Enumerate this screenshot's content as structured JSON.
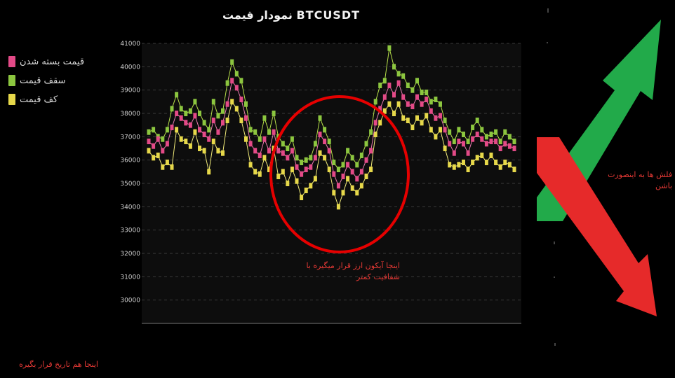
{
  "title": "نمودار قیمت BTCUSDT",
  "legend": [
    {
      "label": "قیمت بسته شدن",
      "color": "#e34a87"
    },
    {
      "label": "سقف قیمت",
      "color": "#8cc63f"
    },
    {
      "label": "کف قیمت",
      "color": "#e6d84a"
    }
  ],
  "annotations": {
    "icon_note": "اینجا آیکون ارز قرار میگیره با شفافیت کمتر",
    "date_note": "اینجا هم تاریخ قرار بگیره",
    "arrows_note": "فلش ها به اینصورت باشن"
  },
  "colors": {
    "plot_bg": "#0d0d0d",
    "grid": "#3a3a3a",
    "highlight_circle": "#e60000",
    "arrow_up": "#22aa4a",
    "arrow_down": "#e62a2a",
    "high_line": "#b7e04a",
    "low_line": "#f2ec7a",
    "close_line": "#e97bb0"
  },
  "chart_data": {
    "type": "line",
    "title": "نمودار قیمت BTCUSDT",
    "ylim": [
      29000,
      41000
    ],
    "y_ticks": [
      "30000",
      "31000",
      "32000",
      "33000",
      "34000",
      "35000",
      "36000",
      "37000",
      "38000",
      "39000",
      "40000",
      "41000"
    ],
    "x": [
      1,
      2,
      3,
      4,
      5,
      6,
      7,
      8,
      9,
      10,
      11,
      12,
      13,
      14,
      15,
      16,
      17,
      18,
      19,
      20,
      21,
      22,
      23,
      24,
      25,
      26,
      27,
      28,
      29,
      30,
      31,
      32,
      33,
      34,
      35,
      36,
      37,
      38,
      39,
      40,
      41,
      42,
      43,
      44,
      45,
      46,
      47,
      48,
      49,
      50,
      51,
      52,
      53,
      54,
      55,
      56,
      57,
      58,
      59,
      60,
      61,
      62,
      63,
      64,
      65,
      66,
      67,
      68,
      69,
      70,
      71,
      72,
      73,
      74,
      75,
      76,
      77,
      78,
      79,
      80
    ],
    "series": [
      {
        "name": "قیمت بسته شدن",
        "values": [
          36800,
          36600,
          36900,
          36400,
          36700,
          37400,
          38000,
          37800,
          37600,
          37500,
          37900,
          37300,
          37100,
          36900,
          37700,
          37200,
          37600,
          38400,
          39400,
          39100,
          38600,
          37800,
          36700,
          36400,
          36200,
          36900,
          36400,
          37200,
          36400,
          36300,
          36100,
          36400,
          35700,
          35400,
          35600,
          35700,
          36100,
          37100,
          36800,
          36400,
          35400,
          34900,
          35300,
          35800,
          35500,
          35200,
          35500,
          36000,
          36400,
          37600,
          38200,
          38700,
          39200,
          38800,
          39300,
          38700,
          38400,
          38300,
          38700,
          38400,
          38600,
          38100,
          37800,
          37900,
          37300,
          36700,
          36300,
          36800,
          36700,
          36300,
          36900,
          37100,
          36900,
          36700,
          36800,
          36800,
          36500,
          36700,
          36600,
          36500
        ]
      },
      {
        "name": "سقف قیمت",
        "values": [
          37200,
          37300,
          37000,
          36900,
          37300,
          38200,
          38800,
          38200,
          38000,
          38100,
          38500,
          38000,
          37600,
          37300,
          38500,
          37900,
          38100,
          39300,
          40200,
          39700,
          39400,
          38400,
          37300,
          37200,
          36900,
          37800,
          37200,
          38000,
          37000,
          36700,
          36500,
          36900,
          36100,
          35900,
          36000,
          36100,
          36700,
          37800,
          37300,
          36800,
          35900,
          35600,
          35800,
          36400,
          36100,
          35800,
          36200,
          36700,
          37200,
          38500,
          39200,
          39400,
          40800,
          40000,
          39700,
          39600,
          39200,
          39000,
          39400,
          38900,
          38900,
          38500,
          38600,
          38400,
          37700,
          37200,
          36800,
          37300,
          37100,
          36800,
          37400,
          37700,
          37300,
          37000,
          37100,
          37200,
          36800,
          37200,
          37000,
          36800
        ]
      },
      {
        "name": "کف قیمت",
        "values": [
          36400,
          36100,
          36200,
          35700,
          35900,
          35700,
          37300,
          36900,
          36800,
          36600,
          37200,
          36500,
          36400,
          35500,
          36800,
          36400,
          36300,
          37700,
          38500,
          38200,
          37700,
          36900,
          35800,
          35500,
          35400,
          36100,
          35600,
          36500,
          35300,
          35500,
          35000,
          35600,
          35100,
          34400,
          34700,
          34900,
          35200,
          36300,
          36100,
          35600,
          34600,
          34000,
          34600,
          35200,
          34800,
          34600,
          34900,
          35300,
          35600,
          37100,
          37600,
          38100,
          38400,
          38000,
          38400,
          37800,
          37700,
          37400,
          37800,
          37600,
          37900,
          37300,
          37000,
          37300,
          36500,
          35800,
          35700,
          35800,
          35900,
          35600,
          35900,
          36100,
          36200,
          35900,
          36200,
          35900,
          35700,
          35900,
          35800,
          35600
        ]
      }
    ]
  }
}
